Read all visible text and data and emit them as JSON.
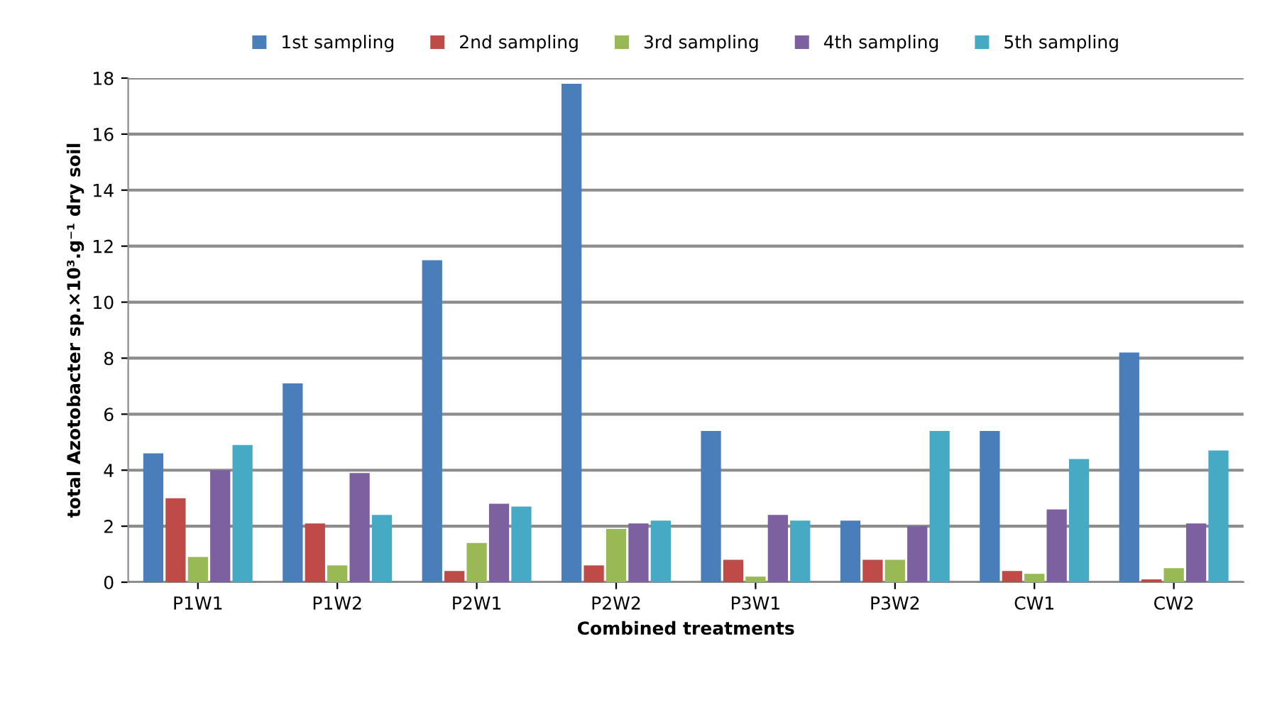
{
  "chart_data": {
    "type": "bar",
    "xlabel": "Combined treatments",
    "ylabel": "total Azotobacter sp.×10³.g⁻¹ dry soil",
    "categories": [
      "P1W1",
      "P1W2",
      "P2W1",
      "P2W2",
      "P3W1",
      "P3W2",
      "CW1",
      "CW2"
    ],
    "series": [
      {
        "name": "1st sampling",
        "color": "#4a7ebb",
        "values": [
          4.6,
          7.1,
          11.5,
          17.8,
          5.4,
          2.2,
          5.4,
          8.2
        ]
      },
      {
        "name": "2nd sampling",
        "color": "#be4b48",
        "values": [
          3.0,
          2.1,
          0.4,
          0.6,
          0.8,
          0.8,
          0.4,
          0.1
        ]
      },
      {
        "name": "3rd sampling",
        "color": "#98b954",
        "values": [
          0.9,
          0.6,
          1.4,
          1.9,
          0.2,
          0.8,
          0.3,
          0.5
        ]
      },
      {
        "name": "4th sampling",
        "color": "#7d60a0",
        "values": [
          4.0,
          3.9,
          2.8,
          2.1,
          2.4,
          2.0,
          2.6,
          2.1
        ]
      },
      {
        "name": "5th sampling",
        "color": "#46aac5",
        "values": [
          4.9,
          2.4,
          2.7,
          2.2,
          2.2,
          5.4,
          4.4,
          4.7
        ]
      }
    ],
    "ylim": [
      0,
      18
    ],
    "yticks": [
      0,
      2,
      4,
      6,
      8,
      10,
      12,
      14,
      16,
      18
    ],
    "grid": "y",
    "legend": "top"
  }
}
